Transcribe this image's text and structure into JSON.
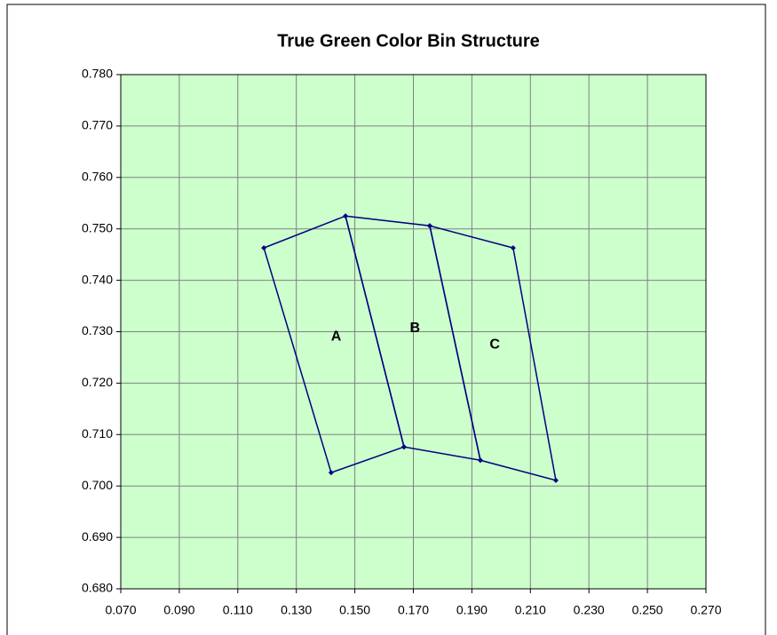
{
  "chart_data": {
    "type": "polygon",
    "title": "True Green Color Bin Structure",
    "series": [
      {
        "name": "A",
        "color": "#000080",
        "x": [
          0.1189,
          0.1468,
          0.1668,
          0.1419
        ],
        "y": [
          0.7463,
          0.7525,
          0.7076,
          0.7026
        ]
      },
      {
        "name": "B",
        "color": "#000080",
        "x": [
          0.1468,
          0.1756,
          0.1929,
          0.1668
        ],
        "y": [
          0.7525,
          0.7506,
          0.705,
          0.7076
        ]
      },
      {
        "name": "C",
        "color": "#000080",
        "x": [
          0.1756,
          0.2041,
          0.2187,
          0.1929
        ],
        "y": [
          0.7506,
          0.7463,
          0.7011,
          0.705
        ]
      }
    ],
    "xlim": [
      0.07,
      0.27
    ],
    "xticks": [
      {
        "value": 0.07,
        "label": "0.070"
      },
      {
        "value": 0.09,
        "label": "0.090"
      },
      {
        "value": 0.11,
        "label": "0.110"
      },
      {
        "value": 0.13,
        "label": "0.130"
      },
      {
        "value": 0.15,
        "label": "0.150"
      },
      {
        "value": 0.17,
        "label": "0.170"
      },
      {
        "value": 0.19,
        "label": "0.190"
      },
      {
        "value": 0.21,
        "label": "0.210"
      },
      {
        "value": 0.23,
        "label": "0.230"
      },
      {
        "value": 0.25,
        "label": "0.250"
      },
      {
        "value": 0.27,
        "label": "0.270"
      }
    ],
    "ylim": [
      0.68,
      0.78
    ],
    "yticks": [
      {
        "value": 0.68,
        "label": "0.680"
      },
      {
        "value": 0.69,
        "label": "0.690"
      },
      {
        "value": 0.7,
        "label": "0.700"
      },
      {
        "value": 0.71,
        "label": "0.710"
      },
      {
        "value": 0.72,
        "label": "0.720"
      },
      {
        "value": 0.73,
        "label": "0.730"
      },
      {
        "value": 0.74,
        "label": "0.740"
      },
      {
        "value": 0.75,
        "label": "0.750"
      },
      {
        "value": 0.76,
        "label": "0.760"
      },
      {
        "value": 0.77,
        "label": "0.770"
      },
      {
        "value": 0.78,
        "label": "0.780"
      }
    ],
    "grid": true,
    "background": "#ccffcc"
  }
}
